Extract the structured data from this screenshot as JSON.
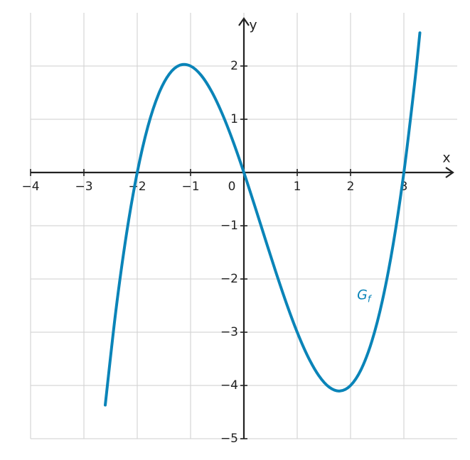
{
  "chart_data": {
    "type": "line",
    "x_label": "x",
    "y_label": "y",
    "xlim": [
      -4,
      4
    ],
    "ylim": [
      -5,
      3
    ],
    "xticks": [
      {
        "value": -4,
        "label": "−4"
      },
      {
        "value": -3,
        "label": "−3"
      },
      {
        "value": -2,
        "label": "−2"
      },
      {
        "value": -1,
        "label": "−1"
      },
      0,
      1,
      2,
      3
    ],
    "yticks": [
      {
        "value": -5,
        "label": "−5"
      },
      {
        "value": -4,
        "label": "−4"
      },
      {
        "value": -3,
        "label": "−3"
      },
      {
        "value": -2,
        "label": "−2"
      },
      {
        "value": -1,
        "label": "−1"
      },
      1,
      2
    ],
    "grid": true,
    "series": [
      {
        "name": "G",
        "subscript": "f",
        "color": "#0a84b8",
        "x": [
          -2.6,
          -2.4,
          -2.2,
          -2.0,
          -1.8,
          -1.6,
          -1.4,
          -1.2,
          -1.0,
          -0.8,
          -0.6,
          -0.4,
          -0.2,
          0,
          0.2,
          0.4,
          0.6,
          0.8,
          1.0,
          1.2,
          1.4,
          1.6,
          1.8,
          2.0,
          2.2,
          2.4,
          2.6,
          2.8,
          3.0,
          3.2,
          3.3
        ],
        "values": [
          -4.368,
          -2.592,
          -1.144,
          0,
          0.864,
          1.472,
          1.848,
          2.016,
          2,
          1.824,
          1.512,
          1.088,
          0.576,
          0,
          -0.616,
          -1.248,
          -1.872,
          -2.464,
          -3,
          -3.456,
          -3.808,
          -4.032,
          -4.104,
          -4,
          -3.696,
          -3.168,
          -2.392,
          -1.344,
          0,
          1.664,
          2.6235
        ]
      }
    ]
  }
}
